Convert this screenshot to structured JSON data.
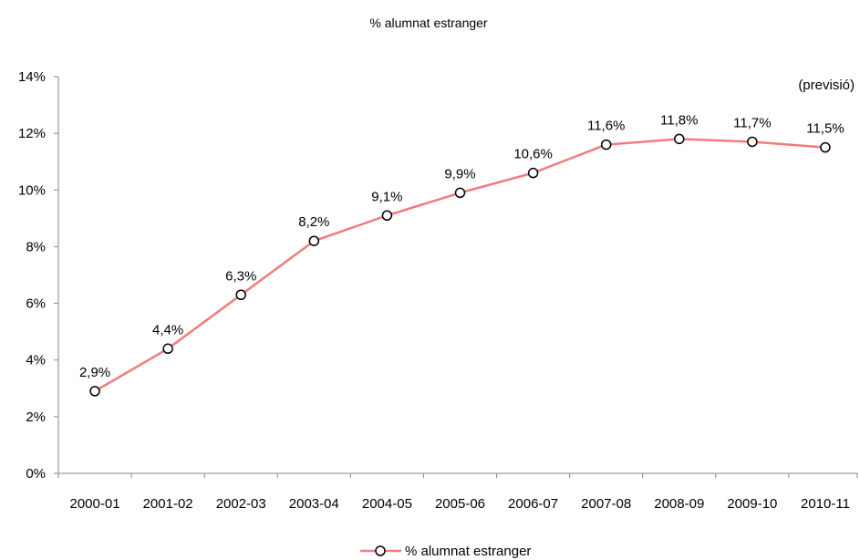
{
  "chart_data": {
    "type": "line",
    "title": "% alumnat estranger",
    "categories": [
      "2000-01",
      "2001-02",
      "2002-03",
      "2003-04",
      "2004-05",
      "2005-06",
      "2006-07",
      "2007-08",
      "2008-09",
      "2009-10",
      "2010-11"
    ],
    "series": [
      {
        "name": "% alumnat estranger",
        "values": [
          2.9,
          4.4,
          6.3,
          8.2,
          9.1,
          9.9,
          10.6,
          11.6,
          11.8,
          11.7,
          11.5
        ],
        "labels": [
          "2,9%",
          "4,4%",
          "6,3%",
          "8,2%",
          "9,1%",
          "9,9%",
          "10,6%",
          "11,6%",
          "11,8%",
          "11,7%",
          "11,5%"
        ],
        "color": "#f07c7c",
        "marker": "open-circle"
      }
    ],
    "ylim": [
      0,
      14
    ],
    "yticks": [
      0,
      2,
      4,
      6,
      8,
      10,
      12,
      14
    ],
    "ytick_labels": [
      "0%",
      "2%",
      "4%",
      "6%",
      "8%",
      "10%",
      "12%",
      "14%"
    ],
    "annotation": "(previsió)",
    "grid": false,
    "legend": "bottom"
  }
}
